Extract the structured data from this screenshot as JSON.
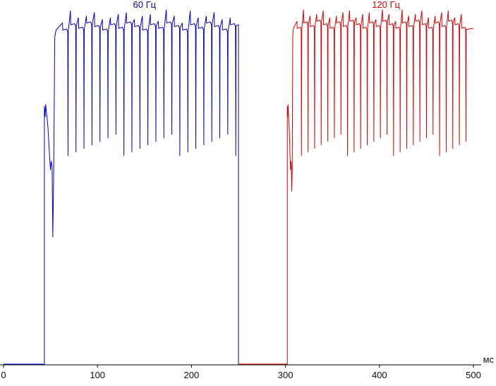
{
  "chart_data": {
    "type": "line",
    "title": "",
    "xlabel": "мс",
    "ylabel": "",
    "background": "#ffffff",
    "axis_color": "#000000",
    "tick_label_color": "#111111",
    "grid": false,
    "x_range_ms": [
      0,
      500
    ],
    "x_ticks": [
      {
        "value": 0,
        "label": "0"
      },
      {
        "value": 100,
        "label": "100"
      },
      {
        "value": 200,
        "label": "200"
      },
      {
        "value": 300,
        "label": "300"
      },
      {
        "value": 400,
        "label": "400"
      },
      {
        "value": 500,
        "label": "500"
      }
    ],
    "x_unit_label": "мс",
    "y_axis_visible": false,
    "series": [
      {
        "name": "60 Гц",
        "color": "#0000cc",
        "label_x_ms": 150,
        "baseline_start_ms": 0,
        "onset_ms": 43.5,
        "end_ms": 250,
        "drop_to_baseline_at_end": true,
        "plateau_level_pct": 95.5,
        "notch_interval_ms": 8.5,
        "notch_min_level_pct": 62,
        "onset_transient": {
          "peak_level_pct": 73,
          "sag_level_pct": 57,
          "undershoot_level_pct": 36,
          "settle_duration_ms": 19
        }
      },
      {
        "name": "120 Гц",
        "color": "#dd0000",
        "label_x_ms": 407,
        "baseline_start_ms": 250,
        "onset_ms": 302,
        "end_ms": 500,
        "drop_to_baseline_at_end": false,
        "plateau_level_pct": 96,
        "notch_interval_ms": 7.0,
        "notch_min_level_pct": 62,
        "onset_transient": {
          "peak_level_pct": 73,
          "sag_level_pct": 57,
          "undershoot_level_pct": 49,
          "settle_duration_ms": 10
        }
      }
    ]
  }
}
